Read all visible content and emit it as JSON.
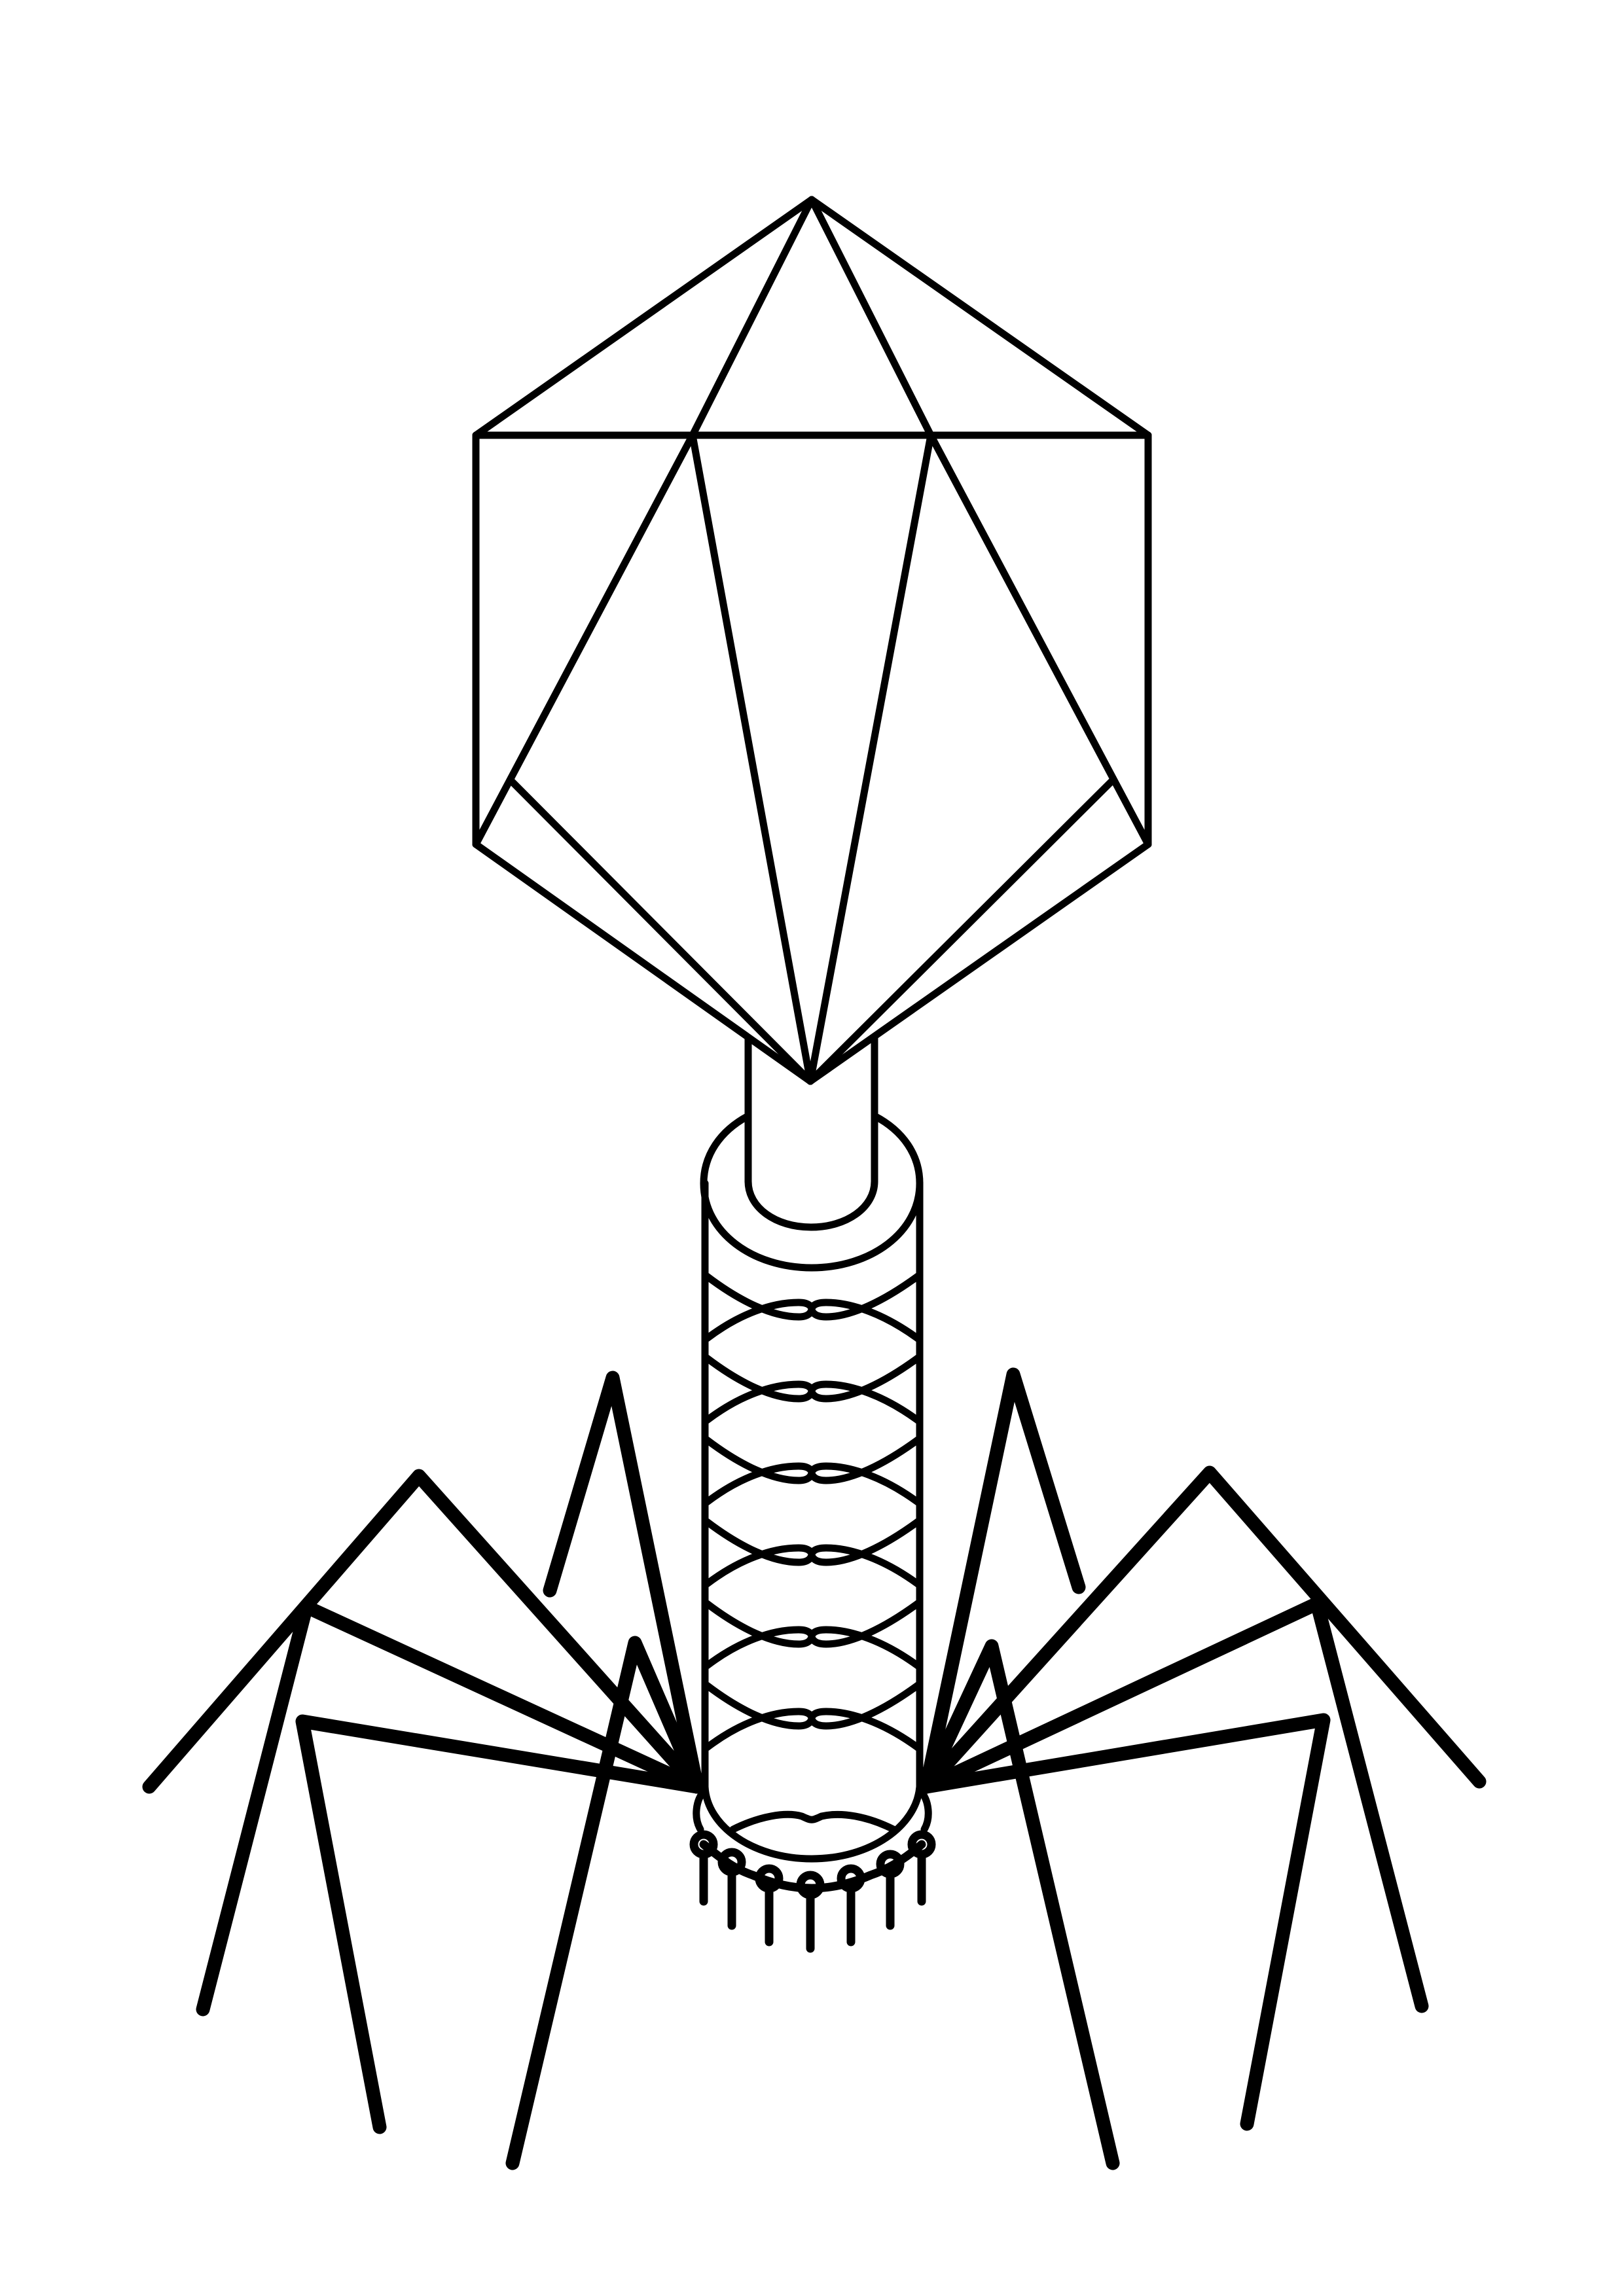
{
  "diagram": {
    "subject": "bacteriophage",
    "style": "black line art on white",
    "colors": {
      "stroke": "#000000",
      "background": "#ffffff"
    },
    "parts": {
      "head": {
        "shape": "icosahedral capsid"
      },
      "collar": {
        "shape": "neck collar"
      },
      "tail_sheath": {
        "rings": 6
      },
      "base_plate": {
        "pins": 7
      },
      "tail_fibers": {
        "count": 6
      }
    }
  }
}
